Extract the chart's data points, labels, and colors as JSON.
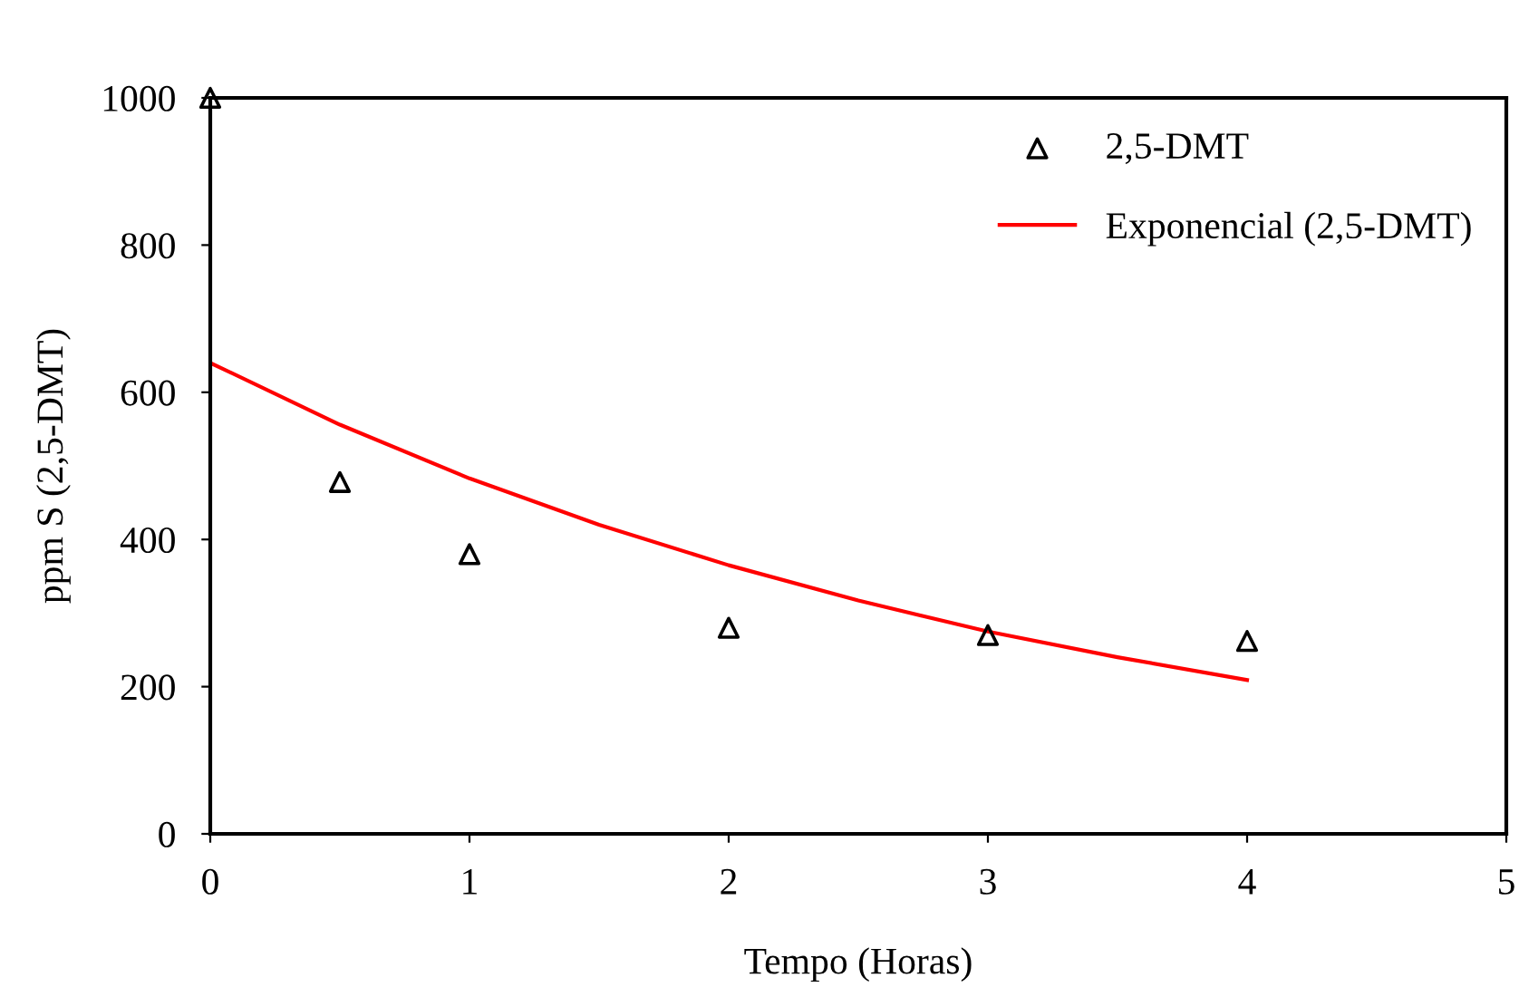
{
  "chart_data": {
    "type": "scatter",
    "xlabel": "Tempo (Horas)",
    "ylabel": "ppm S (2,5-DMT)",
    "xlim": [
      0,
      5
    ],
    "ylim": [
      0,
      1000
    ],
    "xticks": [
      0,
      1,
      2,
      3,
      4,
      5
    ],
    "yticks": [
      0,
      200,
      400,
      600,
      800,
      1000
    ],
    "grid": false,
    "legend": "top right",
    "series": [
      {
        "name": "2,5-DMT",
        "marker": "triangle",
        "color": "#000000",
        "x": [
          0,
          0.5,
          1,
          2,
          3,
          4
        ],
        "values": [
          1000,
          478,
          380,
          280,
          270,
          262
        ]
      },
      {
        "name": "Exponencial (2,5-DMT)",
        "type": "line",
        "color": "#ff0000",
        "line_style": "solid",
        "x": [
          0,
          0.5,
          1,
          1.5,
          2,
          2.5,
          3,
          3.5,
          4
        ],
        "values": [
          640,
          556,
          483,
          420,
          365,
          317,
          275,
          240,
          209
        ]
      }
    ]
  }
}
